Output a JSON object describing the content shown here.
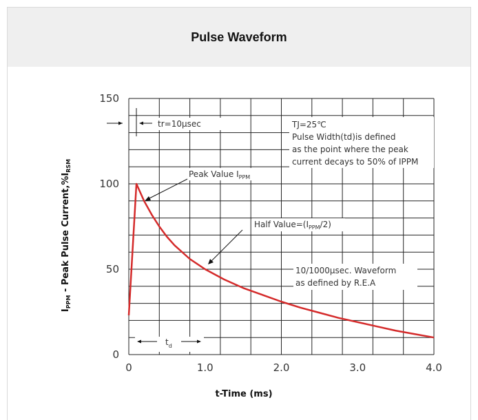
{
  "header": {
    "title": "Pulse Waveform"
  },
  "chart_data": {
    "type": "line",
    "xlabel": "t-Time (ms)",
    "ylabel": {
      "main": "I",
      "sub1": "PPM",
      "mid": " - Peak Pulse Current,%I",
      "sub2": "RSM"
    },
    "xlim": [
      0,
      4.0
    ],
    "ylim": [
      0,
      150
    ],
    "x_ticks": [
      "0",
      "1.0",
      "2.0",
      "3.0",
      "4.0"
    ],
    "y_ticks": [
      "0",
      "50",
      "100",
      "150"
    ],
    "grid": true,
    "series": [
      {
        "color": "#d42a2a",
        "x": [
          0,
          0.1,
          0.2,
          0.3,
          0.4,
          0.5,
          0.6,
          0.8,
          1.0,
          1.25,
          1.5,
          1.75,
          2.0,
          2.25,
          2.5,
          2.75,
          3.0,
          3.25,
          3.5,
          3.75,
          4.0
        ],
        "y": [
          23,
          100,
          90,
          82,
          75,
          69,
          64,
          56,
          50,
          44,
          39,
          35,
          31,
          27.5,
          24.5,
          21.5,
          19,
          16.5,
          14,
          12,
          10
        ]
      }
    ],
    "annotations": {
      "tr": "tr=10μsec",
      "tj_lines": [
        "TJ=25℃",
        "Pulse Width(td)is defined",
        "as the point where the peak",
        "current decays to 50% of IPPM"
      ],
      "peak": {
        "text": "Peak Value I",
        "sub": "PPM"
      },
      "half": {
        "text": "Half Value=(I",
        "sub": "PPM",
        "tail": "/2)"
      },
      "waveform_lines": [
        "10/1000μsec. Waveform",
        "as defined by R.E.A"
      ],
      "td": {
        "text": "t",
        "sub": "d"
      }
    }
  }
}
